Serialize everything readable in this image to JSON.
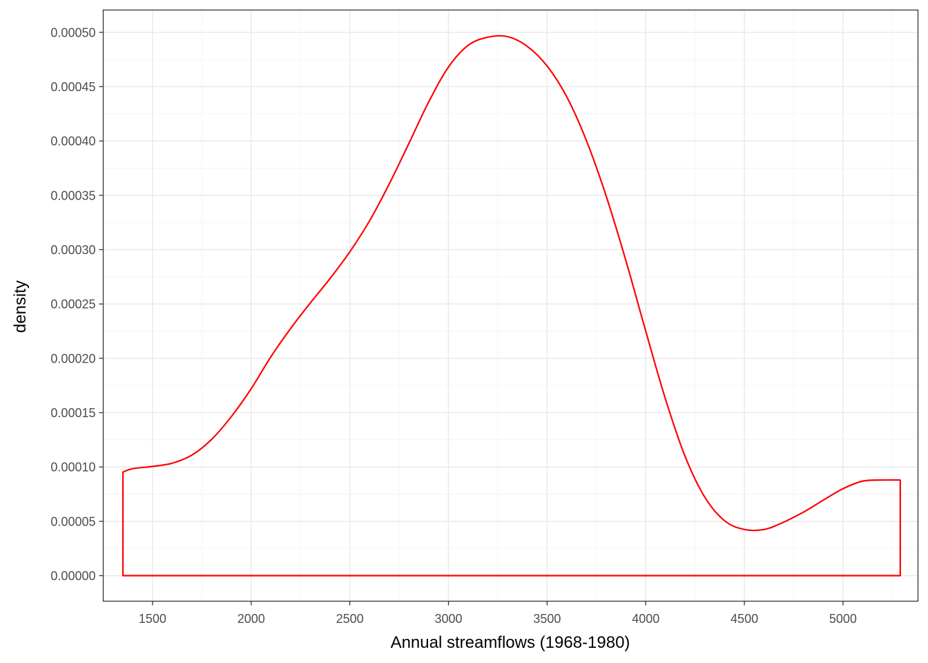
{
  "chart_data": {
    "type": "line",
    "title": "",
    "xlabel": "Annual streamflows (1968-1980)",
    "ylabel": "density",
    "xlim": [
      1250,
      5380
    ],
    "ylim": [
      -2.35e-05,
      0.0005205
    ],
    "x_ticks": [
      1500,
      2000,
      2500,
      3000,
      3500,
      4000,
      4500,
      5000
    ],
    "x_tick_labels": [
      "1500",
      "2000",
      "2500",
      "3000",
      "3500",
      "4000",
      "4500",
      "5000"
    ],
    "y_ticks": [
      0,
      5e-05,
      0.0001,
      0.00015,
      0.0002,
      0.00025,
      0.0003,
      0.00035,
      0.0004,
      0.00045,
      0.0005
    ],
    "y_tick_labels": [
      "0.00000",
      "0.00005",
      "0.00010",
      "0.00015",
      "0.00020",
      "0.00025",
      "0.00030",
      "0.00035",
      "0.00040",
      "0.00045",
      "0.00050"
    ],
    "grid": true,
    "line_color": "#ff0000",
    "series": [
      {
        "name": "",
        "x": [
          1350,
          1350,
          1400,
          1500,
          1600,
          1700,
          1800,
          1900,
          2000,
          2100,
          2200,
          2300,
          2400,
          2500,
          2600,
          2700,
          2800,
          2900,
          3000,
          3100,
          3200,
          3300,
          3400,
          3500,
          3600,
          3700,
          3800,
          3900,
          4000,
          4100,
          4200,
          4300,
          4400,
          4500,
          4600,
          4690,
          4800,
          4900,
          5000,
          5100,
          5200,
          5290,
          5290
        ],
        "y": [
          0,
          9.53e-05,
          9.85e-05,
          0.0001005,
          0.0001035,
          0.000111,
          0.0001255,
          0.0001465,
          0.000172,
          0.0002015,
          0.0002275,
          0.000251,
          0.0002735,
          0.000298,
          0.0003265,
          0.0003605,
          0.000398,
          0.000436,
          0.000468,
          0.000488,
          0.0004955,
          0.000496,
          0.000487,
          0.000469,
          0.0004405,
          0.0004,
          0.000349,
          0.0002895,
          0.000225,
          0.0001625,
          0.0001095,
          7.2e-05,
          5.05e-05,
          4.25e-05,
          4.25e-05,
          4.85e-05,
          5.85e-05,
          6.95e-05,
          8e-05,
          8.7e-05,
          8.8e-05,
          8.8e-05,
          0
        ]
      }
    ]
  }
}
